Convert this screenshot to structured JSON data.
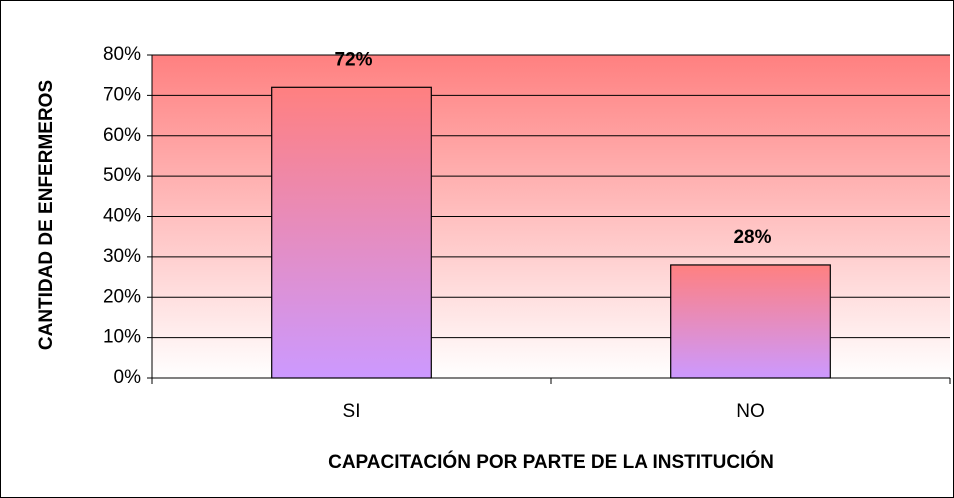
{
  "chart_data": {
    "type": "bar",
    "xlabel": "CAPACITACIÓN POR PARTE DE LA INSTITUCIÓN",
    "ylabel": "CANTIDAD DE ENFERMEROS",
    "categories": [
      "SI",
      "NO"
    ],
    "values": [
      72,
      28
    ],
    "value_labels": [
      "72%",
      "28%"
    ],
    "bar_gradient": [
      "#ff8080",
      "#cc99ff"
    ],
    "plot_gradient": [
      "#ff8080",
      "#ffffff"
    ],
    "ylim": [
      0,
      80
    ],
    "yticks": [
      {
        "value": 0,
        "label": "0%"
      },
      {
        "value": 10,
        "label": "10%"
      },
      {
        "value": 20,
        "label": "20%"
      },
      {
        "value": 30,
        "label": "30%"
      },
      {
        "value": 40,
        "label": "40%"
      },
      {
        "value": 50,
        "label": "50%"
      },
      {
        "value": 60,
        "label": "60%"
      },
      {
        "value": 70,
        "label": "70%"
      },
      {
        "value": 80,
        "label": "80%"
      }
    ],
    "grid": true
  }
}
